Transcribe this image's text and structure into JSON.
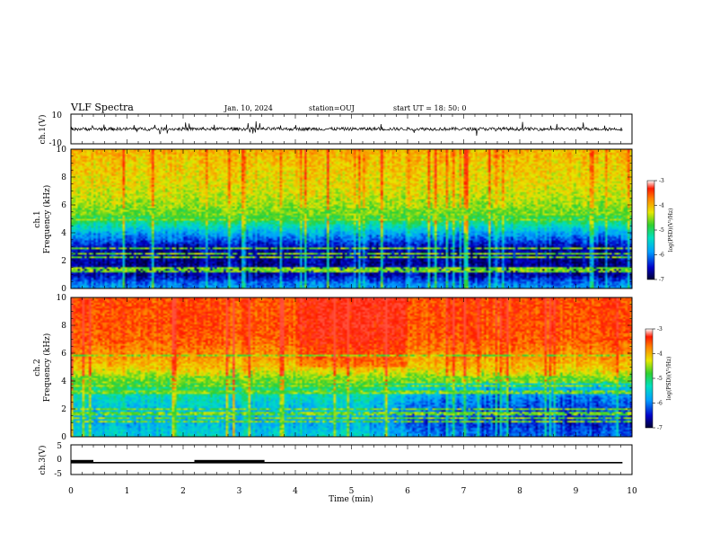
{
  "header": {
    "title": "VLF Spectra",
    "date": "Jan. 10, 2024",
    "station": "station=OUJ",
    "start": "start  UT  =   18: 50: 0"
  },
  "chart_data": [
    {
      "type": "line",
      "panel": "ch1-waveform",
      "ylabel": "ch.1(V)",
      "ylim": [
        -10,
        10
      ],
      "yticks": [
        "10",
        "-10"
      ],
      "x_range_min": [
        0,
        9.83
      ],
      "baseline_value": 0,
      "trace_color": "#000000"
    },
    {
      "type": "heatmap",
      "panel": "ch1-spectrogram",
      "ylabel_line1": "ch.1",
      "ylabel_line2": "Frequency (kHz)",
      "ylim": [
        0,
        10
      ],
      "yticks": [
        "0",
        "2",
        "4",
        "6",
        "8",
        "10"
      ],
      "x_range_min": [
        0,
        9.83
      ],
      "colorbar": {
        "label": "log(PSD)(V²/Hz)",
        "range": [
          -7,
          -3
        ],
        "ticks": [
          "-3",
          "-4",
          "-5",
          "-6",
          "-7"
        ]
      },
      "profile_log_psd": [
        {
          "freq_khz": 0.0,
          "log_psd": -5.8
        },
        {
          "freq_khz": 0.5,
          "log_psd": -6.1
        },
        {
          "freq_khz": 1.0,
          "log_psd": -6.6
        },
        {
          "freq_khz": 2.0,
          "log_psd": -6.7
        },
        {
          "freq_khz": 3.0,
          "log_psd": -6.6
        },
        {
          "freq_khz": 4.0,
          "log_psd": -5.8
        },
        {
          "freq_khz": 5.0,
          "log_psd": -4.9
        },
        {
          "freq_khz": 6.0,
          "log_psd": -4.5
        },
        {
          "freq_khz": 7.0,
          "log_psd": -4.3
        },
        {
          "freq_khz": 8.0,
          "log_psd": -4.2
        },
        {
          "freq_khz": 9.0,
          "log_psd": -4.1
        },
        {
          "freq_khz": 10.0,
          "log_psd": -4.0
        }
      ]
    },
    {
      "type": "heatmap",
      "panel": "ch2-spectrogram",
      "ylabel_line1": "ch.2",
      "ylabel_line2": "Frequency (kHz)",
      "ylim": [
        0,
        10
      ],
      "yticks": [
        "0",
        "2",
        "4",
        "6",
        "8",
        "10"
      ],
      "x_range_min": [
        0,
        9.83
      ],
      "colorbar": {
        "label": "log(PSD)(V²/Hz)",
        "range": [
          -7,
          -3
        ],
        "ticks": [
          "-3",
          "-4",
          "-5",
          "-6",
          "-7"
        ]
      },
      "profile_log_psd": [
        {
          "freq_khz": 0.0,
          "log_psd": -5.4
        },
        {
          "freq_khz": 1.0,
          "log_psd": -5.7
        },
        {
          "freq_khz": 2.0,
          "log_psd": -5.6
        },
        {
          "freq_khz": 3.0,
          "log_psd": -5.3
        },
        {
          "freq_khz": 4.0,
          "log_psd": -4.7
        },
        {
          "freq_khz": 5.0,
          "log_psd": -4.1
        },
        {
          "freq_khz": 6.0,
          "log_psd": -3.8
        },
        {
          "freq_khz": 7.0,
          "log_psd": -3.6
        },
        {
          "freq_khz": 8.0,
          "log_psd": -3.5
        },
        {
          "freq_khz": 9.0,
          "log_psd": -3.5
        },
        {
          "freq_khz": 10.0,
          "log_psd": -3.5
        }
      ]
    },
    {
      "type": "line",
      "panel": "ch3-waveform",
      "ylabel": "ch.3(V)",
      "ylim": [
        -5,
        5
      ],
      "yticks": [
        "5",
        "0",
        "-5"
      ],
      "x_range_min": [
        0,
        9.83
      ],
      "level_v": -1,
      "high_segments_min": [
        [
          0.0,
          0.4
        ],
        [
          2.2,
          3.45
        ]
      ],
      "trace_color": "#000000"
    }
  ],
  "xaxis": {
    "label": "Time (min)",
    "ticks": [
      "0",
      "1",
      "2",
      "3",
      "4",
      "5",
      "6",
      "7",
      "8",
      "9",
      "10"
    ],
    "range_min": [
      0,
      10
    ]
  }
}
